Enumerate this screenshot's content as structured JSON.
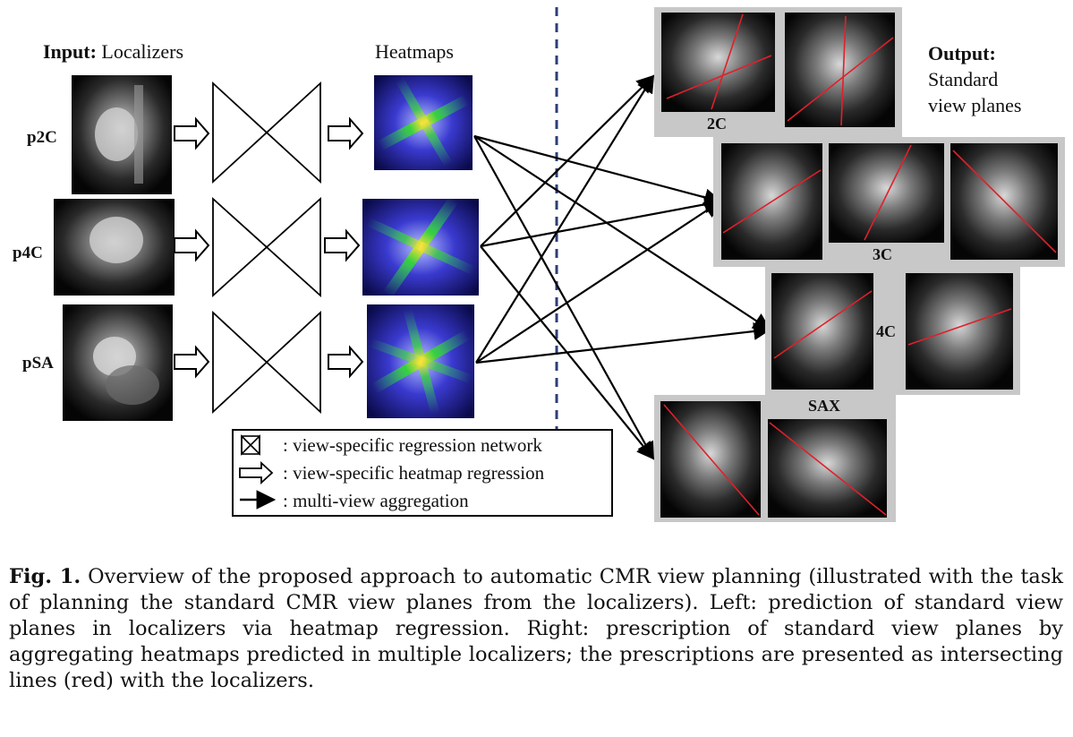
{
  "figure": {
    "input_label_bold": "Input:",
    "input_label_text": "Localizers",
    "heatmaps_label": "Heatmaps",
    "output_label_bold": "Output:",
    "output_label_line2": "Standard",
    "output_label_line3": "view planes",
    "row_labels": [
      "p2C",
      "p4C",
      "pSA"
    ],
    "output_groups": [
      "2C",
      "3C",
      "4C",
      "SAX"
    ],
    "legend": {
      "network": ": view-specific regression network",
      "heatmap": ": view-specific heatmap regression",
      "aggregation": ": multi-view aggregation"
    },
    "colors": {
      "dashed_divider": "#2b3f73",
      "prescription_lines": "#e0202a",
      "group_panel": "#c8c8c8"
    }
  },
  "caption": {
    "label": "Fig. 1.",
    "text": "Overview of the proposed approach to automatic CMR view planning (illustrated with the task of planning the standard CMR view planes from the localizers). Left: prediction of standard view planes in localizers via heatmap regression. Right: prescription of standard view planes by aggregating heatmaps predicted in multiple localizers; the prescriptions are presented as intersecting lines (red) with the localizers."
  }
}
